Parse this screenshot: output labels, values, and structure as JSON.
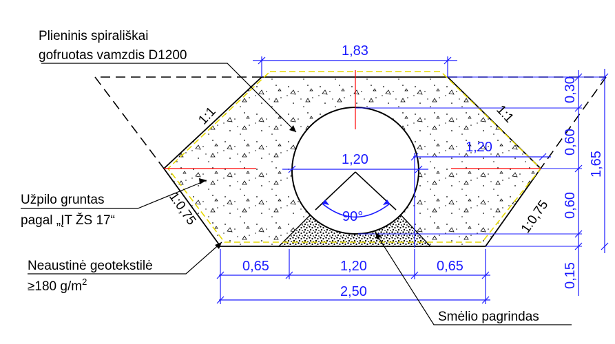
{
  "colors": {
    "dimension": "#1a1aff",
    "centerline": "#ff0000",
    "geotextile": "#e6d800",
    "outline": "#000000"
  },
  "labels": {
    "pipe_line1": "Plieninis spirališkai",
    "pipe_line2": "gofruotas vamzdis D1200",
    "backfill_line1": "Užpilo gruntas",
    "backfill_line2": "pagal „ĮT ŽS 17“",
    "geotextile_line1": "Neaustinė geotekstilė",
    "geotextile_line2_main": "≥180 g/m",
    "geotextile_line2_sup": "2",
    "sand": "Smėlio pagrindas"
  },
  "slopes": {
    "upper_left": "1:1",
    "upper_right": "1:1",
    "lower_left": "1:0,75",
    "lower_right": "1:0,75"
  },
  "dimensions": {
    "top_width": "1,83",
    "pipe_diameter": "1,20",
    "right_offset": "1,20",
    "bottom_left": "0,65",
    "bottom_middle": "1,20",
    "bottom_right": "0,65",
    "total_width": "2,50",
    "v_top": "0,30",
    "v_upper": "0,60",
    "v_lower": "0,60",
    "v_base": "0,15",
    "v_total": "1,65",
    "angle": "90°"
  }
}
